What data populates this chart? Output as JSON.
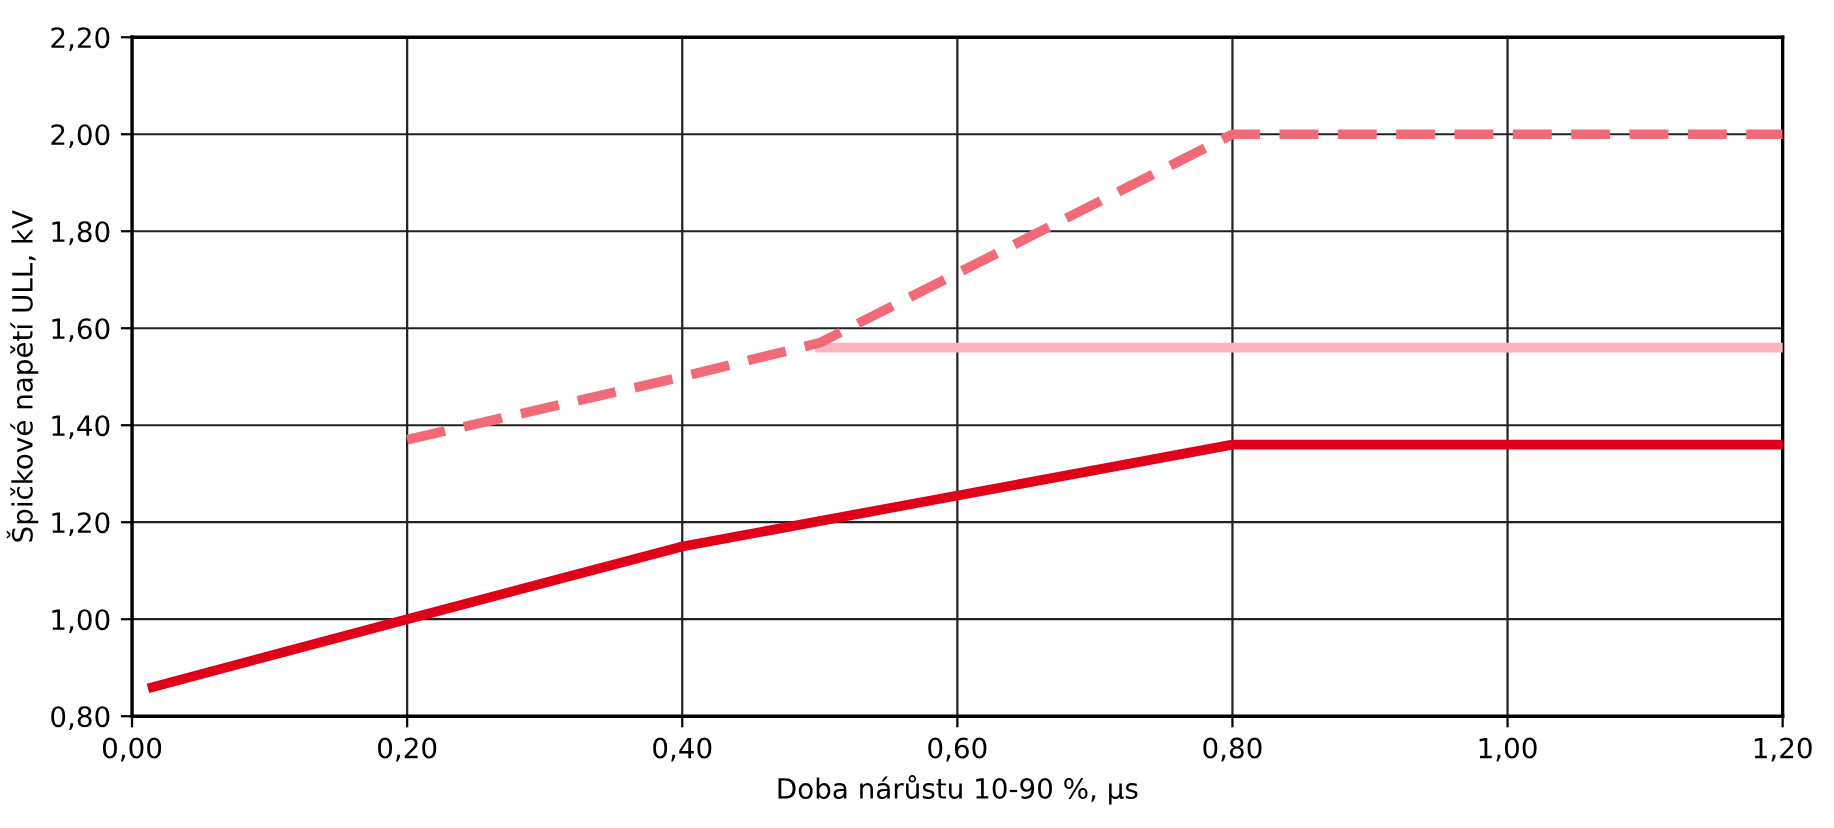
{
  "chart_data": {
    "type": "line",
    "xlabel": "Doba nárůstu 10-90 %, µs",
    "ylabel": "Špičkové napětí ULL, kV",
    "xlim": [
      0,
      1.2
    ],
    "ylim": [
      0.8,
      2.2
    ],
    "xticks": [
      {
        "value": 0,
        "label": "0,00"
      },
      {
        "value": 0.2,
        "label": "0,20"
      },
      {
        "value": 0.4,
        "label": "0,40"
      },
      {
        "value": 0.6,
        "label": "0,60"
      },
      {
        "value": 0.8,
        "label": "0,80"
      },
      {
        "value": 1.0,
        "label": "1,00"
      },
      {
        "value": 1.2,
        "label": "1,20"
      }
    ],
    "yticks": [
      {
        "value": 0.8,
        "label": "0,80"
      },
      {
        "value": 1.0,
        "label": "1,00"
      },
      {
        "value": 1.2,
        "label": "1,20"
      },
      {
        "value": 1.4,
        "label": "1,40"
      },
      {
        "value": 1.6,
        "label": "1,60"
      },
      {
        "value": 1.8,
        "label": "1,80"
      },
      {
        "value": 2.0,
        "label": "2,00"
      },
      {
        "value": 2.2,
        "label": "2,20"
      }
    ],
    "grid": true,
    "marker": "none",
    "series": [
      {
        "color": "#ffb3bd",
        "line_style": "solid",
        "x": [
          0.5,
          1.2
        ],
        "values": [
          1.56,
          1.56
        ]
      },
      {
        "color": "#f06a78",
        "line_style": "dashed",
        "x": [
          0.2,
          0.4,
          0.5,
          0.8,
          1.2
        ],
        "values": [
          1.37,
          1.5,
          1.57,
          2.0,
          2.0
        ]
      },
      {
        "color": "#e1001a",
        "line_style": "solid",
        "x": [
          0.015,
          0.2,
          0.4,
          0.8,
          1.2
        ],
        "values": [
          0.86,
          1.0,
          1.15,
          1.36,
          1.36
        ]
      }
    ]
  }
}
